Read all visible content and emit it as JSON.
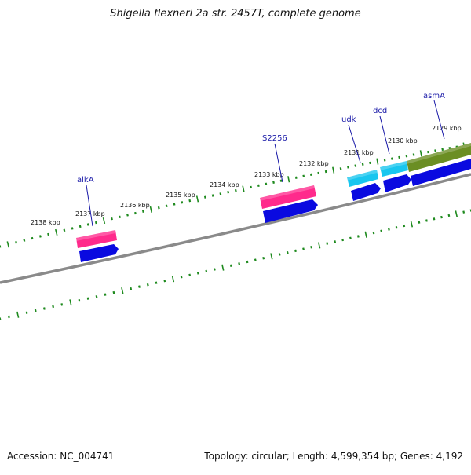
{
  "title": "Shigella flexneri 2a str. 2457T, complete genome",
  "footer": {
    "accession": "Accession: NC_004741",
    "summary": "Topology: circular; Length: 4,599,354 bp; Genes: 4,192"
  },
  "colors": {
    "backbone": "#8a8a8a",
    "ticks": "#1e8a1e",
    "cds": "#0a0ae0",
    "rna_magenta": "#ff2a8c",
    "rna_cyan": "#18c6ef",
    "olive": "#6b8e23",
    "label": "#1a1aa8"
  },
  "ruler": {
    "labels": [
      "2138 kbp",
      "2137 kbp",
      "2136 kbp",
      "2135 kbp",
      "2134 kbp",
      "2133 kbp",
      "2132 kbp",
      "2131 kbp",
      "2130 kbp",
      "2129 kbp"
    ]
  },
  "genes": [
    {
      "name": "alkA",
      "track": "magenta",
      "strand": "forward"
    },
    {
      "name": "S2256",
      "track": "magenta",
      "strand": "forward"
    },
    {
      "name": "udk",
      "track": "cyan",
      "strand": "forward"
    },
    {
      "name": "dcd",
      "track": "cyan",
      "strand": "forward"
    },
    {
      "name": "asmA",
      "track": "olive",
      "strand": "forward"
    }
  ]
}
